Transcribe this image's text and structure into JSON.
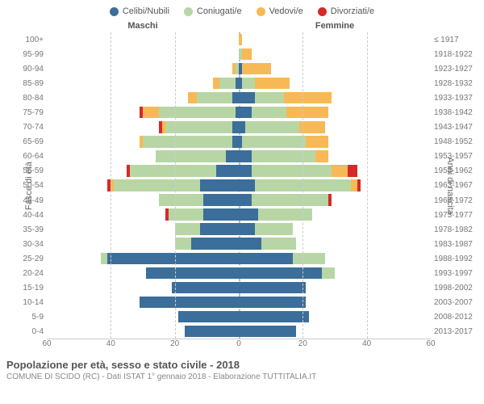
{
  "legend": [
    {
      "label": "Celibi/Nubili",
      "color": "#3b6e9a"
    },
    {
      "label": "Coniugati/e",
      "color": "#b8d6a5"
    },
    {
      "label": "Vedovi/e",
      "color": "#f7b955"
    },
    {
      "label": "Divorziati/e",
      "color": "#d62a28"
    }
  ],
  "headers": {
    "male": "Maschi",
    "female": "Femmine"
  },
  "ylabels": {
    "left": "Fasce di età",
    "right": "Anni di nascita"
  },
  "xaxis": {
    "max": 60,
    "ticks": [
      60,
      40,
      20,
      0,
      20,
      40,
      60
    ]
  },
  "colors": {
    "single": "#3b6e9a",
    "married": "#b8d6a5",
    "widowed": "#f7b955",
    "divorced": "#d62a28",
    "grid": "#cccccc",
    "background": "#ffffff"
  },
  "rows": [
    {
      "age": "100+",
      "birth": "≤ 1917",
      "m": {
        "s": 0,
        "m": 0,
        "w": 0,
        "d": 0
      },
      "f": {
        "s": 0,
        "m": 0,
        "w": 1,
        "d": 0
      }
    },
    {
      "age": "95-99",
      "birth": "1918-1922",
      "m": {
        "s": 0,
        "m": 0,
        "w": 0,
        "d": 0
      },
      "f": {
        "s": 0,
        "m": 1,
        "w": 3,
        "d": 0
      }
    },
    {
      "age": "90-94",
      "birth": "1923-1927",
      "m": {
        "s": 0,
        "m": 1,
        "w": 1,
        "d": 0
      },
      "f": {
        "s": 1,
        "m": 0,
        "w": 9,
        "d": 0
      }
    },
    {
      "age": "85-89",
      "birth": "1928-1932",
      "m": {
        "s": 1,
        "m": 5,
        "w": 2,
        "d": 0
      },
      "f": {
        "s": 1,
        "m": 4,
        "w": 11,
        "d": 0
      }
    },
    {
      "age": "80-84",
      "birth": "1933-1937",
      "m": {
        "s": 2,
        "m": 11,
        "w": 3,
        "d": 0
      },
      "f": {
        "s": 5,
        "m": 9,
        "w": 15,
        "d": 0
      }
    },
    {
      "age": "75-79",
      "birth": "1938-1942",
      "m": {
        "s": 1,
        "m": 24,
        "w": 5,
        "d": 1
      },
      "f": {
        "s": 4,
        "m": 11,
        "w": 13,
        "d": 0
      }
    },
    {
      "age": "70-74",
      "birth": "1943-1947",
      "m": {
        "s": 2,
        "m": 21,
        "w": 1,
        "d": 1
      },
      "f": {
        "s": 2,
        "m": 17,
        "w": 8,
        "d": 0
      }
    },
    {
      "age": "65-69",
      "birth": "1948-1952",
      "m": {
        "s": 2,
        "m": 28,
        "w": 1,
        "d": 0
      },
      "f": {
        "s": 1,
        "m": 20,
        "w": 7,
        "d": 0
      }
    },
    {
      "age": "60-64",
      "birth": "1953-1957",
      "m": {
        "s": 4,
        "m": 22,
        "w": 0,
        "d": 0
      },
      "f": {
        "s": 4,
        "m": 20,
        "w": 4,
        "d": 0
      }
    },
    {
      "age": "55-59",
      "birth": "1958-1962",
      "m": {
        "s": 7,
        "m": 27,
        "w": 0,
        "d": 1
      },
      "f": {
        "s": 4,
        "m": 25,
        "w": 5,
        "d": 3
      }
    },
    {
      "age": "50-54",
      "birth": "1963-1967",
      "m": {
        "s": 12,
        "m": 27,
        "w": 1,
        "d": 1
      },
      "f": {
        "s": 5,
        "m": 30,
        "w": 2,
        "d": 1
      }
    },
    {
      "age": "45-49",
      "birth": "1968-1972",
      "m": {
        "s": 11,
        "m": 14,
        "w": 0,
        "d": 0
      },
      "f": {
        "s": 4,
        "m": 24,
        "w": 0,
        "d": 1
      }
    },
    {
      "age": "40-44",
      "birth": "1973-1977",
      "m": {
        "s": 11,
        "m": 11,
        "w": 0,
        "d": 1
      },
      "f": {
        "s": 6,
        "m": 17,
        "w": 0,
        "d": 0
      }
    },
    {
      "age": "35-39",
      "birth": "1978-1982",
      "m": {
        "s": 12,
        "m": 8,
        "w": 0,
        "d": 0
      },
      "f": {
        "s": 5,
        "m": 12,
        "w": 0,
        "d": 0
      }
    },
    {
      "age": "30-34",
      "birth": "1983-1987",
      "m": {
        "s": 15,
        "m": 5,
        "w": 0,
        "d": 0
      },
      "f": {
        "s": 7,
        "m": 11,
        "w": 0,
        "d": 0
      }
    },
    {
      "age": "25-29",
      "birth": "1988-1992",
      "m": {
        "s": 41,
        "m": 2,
        "w": 0,
        "d": 0
      },
      "f": {
        "s": 17,
        "m": 10,
        "w": 0,
        "d": 0
      }
    },
    {
      "age": "20-24",
      "birth": "1993-1997",
      "m": {
        "s": 29,
        "m": 0,
        "w": 0,
        "d": 0
      },
      "f": {
        "s": 26,
        "m": 4,
        "w": 0,
        "d": 0
      }
    },
    {
      "age": "15-19",
      "birth": "1998-2002",
      "m": {
        "s": 21,
        "m": 0,
        "w": 0,
        "d": 0
      },
      "f": {
        "s": 21,
        "m": 0,
        "w": 0,
        "d": 0
      }
    },
    {
      "age": "10-14",
      "birth": "2003-2007",
      "m": {
        "s": 31,
        "m": 0,
        "w": 0,
        "d": 0
      },
      "f": {
        "s": 21,
        "m": 0,
        "w": 0,
        "d": 0
      }
    },
    {
      "age": "5-9",
      "birth": "2008-2012",
      "m": {
        "s": 19,
        "m": 0,
        "w": 0,
        "d": 0
      },
      "f": {
        "s": 22,
        "m": 0,
        "w": 0,
        "d": 0
      }
    },
    {
      "age": "0-4",
      "birth": "2013-2017",
      "m": {
        "s": 17,
        "m": 0,
        "w": 0,
        "d": 0
      },
      "f": {
        "s": 18,
        "m": 0,
        "w": 0,
        "d": 0
      }
    }
  ],
  "footer": {
    "title": "Popolazione per età, sesso e stato civile - 2018",
    "subtitle": "COMUNE DI SCIDO (RC) - Dati ISTAT 1° gennaio 2018 - Elaborazione TUTTITALIA.IT"
  }
}
